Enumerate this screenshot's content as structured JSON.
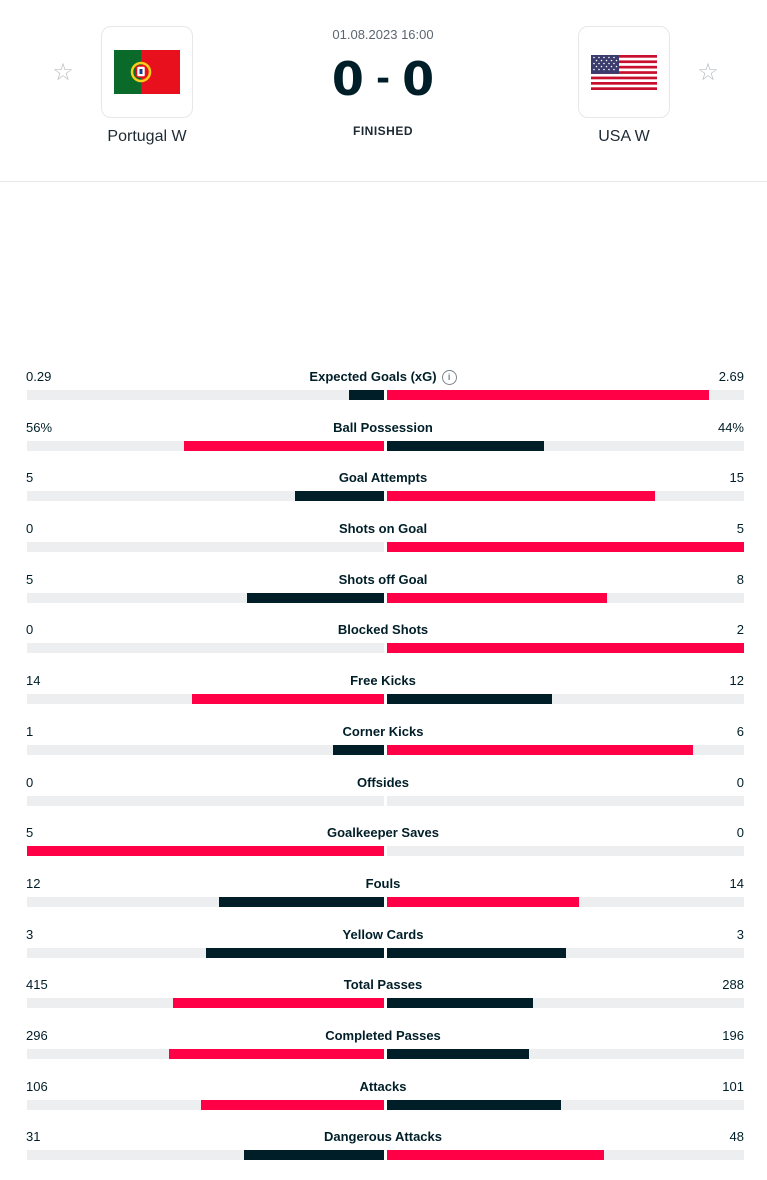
{
  "match": {
    "datetime": "01.08.2023 16:00",
    "home_score": "0",
    "separator": "-",
    "away_score": "0",
    "status": "FINISHED",
    "home_team": {
      "name": "Portugal W",
      "flag": "portugal-flag",
      "favorite_icon": "star-icon"
    },
    "away_team": {
      "name": "USA W",
      "flag": "usa-flag",
      "favorite_icon": "star-icon"
    }
  },
  "colors": {
    "leader_bar": "#ff0046",
    "trailer_bar": "#001e28",
    "track": "#eceeef"
  },
  "stats": [
    {
      "category": "Expected Goals (xG)",
      "home": "0.29",
      "away": "2.69",
      "home_num": 0.29,
      "away_num": 2.69,
      "info": true
    },
    {
      "category": "Ball Possession",
      "home": "56%",
      "away": "44%",
      "home_num": 56,
      "away_num": 44
    },
    {
      "category": "Goal Attempts",
      "home": "5",
      "away": "15",
      "home_num": 5,
      "away_num": 15
    },
    {
      "category": "Shots on Goal",
      "home": "0",
      "away": "5",
      "home_num": 0,
      "away_num": 5
    },
    {
      "category": "Shots off Goal",
      "home": "5",
      "away": "8",
      "home_num": 5,
      "away_num": 8
    },
    {
      "category": "Blocked Shots",
      "home": "0",
      "away": "2",
      "home_num": 0,
      "away_num": 2
    },
    {
      "category": "Free Kicks",
      "home": "14",
      "away": "12",
      "home_num": 14,
      "away_num": 12
    },
    {
      "category": "Corner Kicks",
      "home": "1",
      "away": "6",
      "home_num": 1,
      "away_num": 6
    },
    {
      "category": "Offsides",
      "home": "0",
      "away": "0",
      "home_num": 0,
      "away_num": 0
    },
    {
      "category": "Goalkeeper Saves",
      "home": "5",
      "away": "0",
      "home_num": 5,
      "away_num": 0
    },
    {
      "category": "Fouls",
      "home": "12",
      "away": "14",
      "home_num": 12,
      "away_num": 14
    },
    {
      "category": "Yellow Cards",
      "home": "3",
      "away": "3",
      "home_num": 3,
      "away_num": 3
    },
    {
      "category": "Total Passes",
      "home": "415",
      "away": "288",
      "home_num": 415,
      "away_num": 288
    },
    {
      "category": "Completed Passes",
      "home": "296",
      "away": "196",
      "home_num": 296,
      "away_num": 196
    },
    {
      "category": "Attacks",
      "home": "106",
      "away": "101",
      "home_num": 106,
      "away_num": 101
    },
    {
      "category": "Dangerous Attacks",
      "home": "31",
      "away": "48",
      "home_num": 31,
      "away_num": 48
    }
  ]
}
